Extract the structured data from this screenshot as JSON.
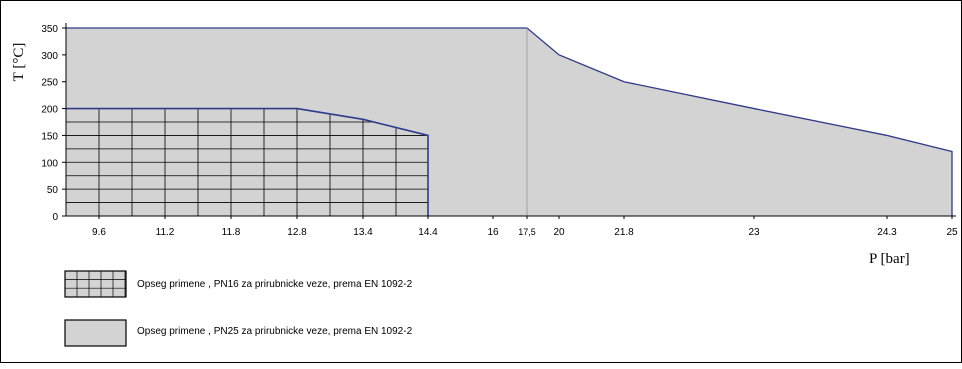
{
  "chart_data": {
    "type": "area",
    "ylabel": "T [°C]",
    "xlabel": "P [bar]",
    "ylim": [
      0,
      350
    ],
    "yticks": [
      0,
      50,
      100,
      150,
      200,
      250,
      300,
      350
    ],
    "xtick_labels": [
      "9.6",
      "11.2",
      "11.8",
      "12.8",
      "13.4",
      "14.4",
      "16",
      "17,5",
      "20",
      "21.8",
      "23",
      "24.3",
      "25"
    ],
    "series": [
      {
        "name": "Opseg primene , PN25 za prirubnicke veze, prema EN 1092-2",
        "fill": "#d3d3d3",
        "points": [
          [
            "start",
            350
          ],
          [
            "17,5",
            350
          ],
          [
            "20",
            300
          ],
          [
            "21.8",
            250
          ],
          [
            "23",
            200
          ],
          [
            "24.3",
            150
          ],
          [
            "25",
            120
          ]
        ]
      },
      {
        "name": "Opseg primene , PN16 za prirubnicke veze, prema EN 1092-2",
        "fill": "grid",
        "points": [
          [
            "start",
            200
          ],
          [
            "12.8",
            200
          ],
          [
            "13.4",
            180
          ],
          [
            "14.4",
            150
          ]
        ]
      }
    ],
    "legend": [
      {
        "label": "Opseg primene , PN16 za prirubnicke veze, prema EN 1092-2",
        "pattern": "grid"
      },
      {
        "label": "Opseg primene , PN25 za prirubnicke veze, prema EN 1092-2",
        "pattern": "solid"
      }
    ]
  },
  "colors": {
    "fill": "#d3d3d3",
    "outline": "#2e3a8c",
    "grid": "#000000"
  }
}
